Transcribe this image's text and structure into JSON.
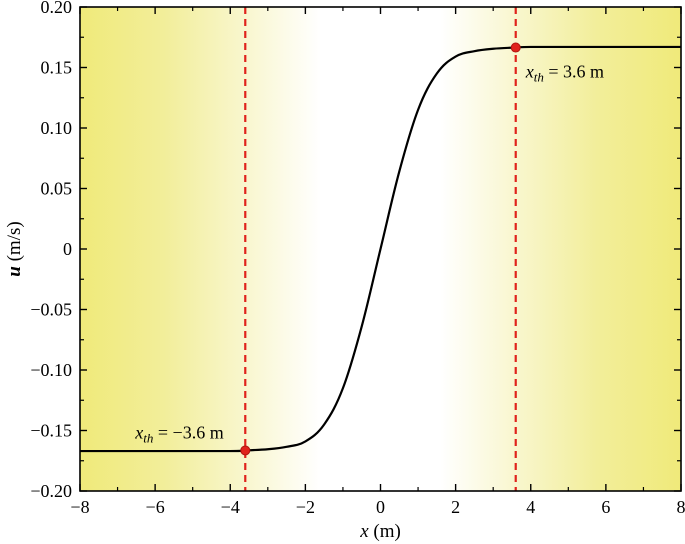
{
  "chart_data": {
    "type": "line",
    "xlabel": {
      "var": "x",
      "unit": " (m)"
    },
    "ylabel": {
      "var": "u",
      "unit": " (m/s)"
    },
    "xlim": [
      -8,
      8
    ],
    "ylim": [
      -0.2,
      0.2
    ],
    "xticks": [
      -8,
      -6,
      -4,
      -2,
      0,
      2,
      4,
      6,
      8
    ],
    "xtick_labels": [
      "−8",
      "−6",
      "−4",
      "−2",
      "0",
      "2",
      "4",
      "6",
      "8"
    ],
    "yticks": [
      -0.2,
      -0.15,
      -0.1,
      -0.05,
      0,
      0.05,
      0.1,
      0.15,
      0.2
    ],
    "ytick_labels": [
      "−0.20",
      "−0.15",
      "−0.10",
      "−0.05",
      "0",
      "0.05",
      "0.10",
      "0.15",
      "0.20"
    ],
    "grid": false,
    "background": "yellow gradient at both ends fading to white at center",
    "colors": {
      "curve": "#000000",
      "threshold": "#e0231c",
      "marker": "#e0231c",
      "band": "#f0ea7a"
    },
    "series": [
      {
        "x": [
          -8,
          -6,
          -4,
          -3.6,
          -3,
          -2.5,
          -2,
          -1.5,
          -1,
          -0.5,
          0,
          0.5,
          1,
          1.5,
          2,
          2.5,
          3,
          3.6,
          4,
          6,
          8
        ],
        "y": [
          -0.167,
          -0.167,
          -0.167,
          -0.1665,
          -0.1655,
          -0.1635,
          -0.159,
          -0.145,
          -0.115,
          -0.064,
          0,
          0.064,
          0.115,
          0.145,
          0.159,
          0.1635,
          0.1655,
          0.1665,
          0.167,
          0.167,
          0.167
        ]
      }
    ],
    "thresholds": [
      {
        "x": -3.6,
        "y": -0.1665,
        "label_sym": "x",
        "label_sub": "th",
        "label_text": " = −3.6 m"
      },
      {
        "x": 3.6,
        "y": 0.1665,
        "label_sym": "x",
        "label_sub": "th",
        "label_text": " = 3.6 m"
      }
    ]
  }
}
